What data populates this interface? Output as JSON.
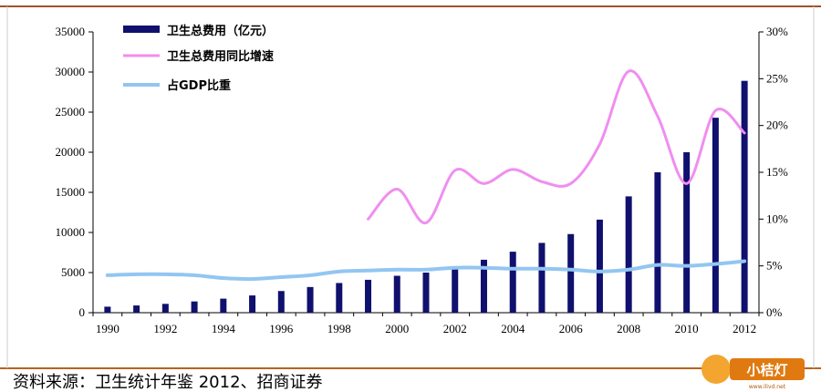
{
  "chart_data": {
    "type": "bar",
    "x_axis": {
      "categories": [
        1990,
        1991,
        1992,
        1993,
        1994,
        1995,
        1996,
        1997,
        1998,
        1999,
        2000,
        2001,
        2002,
        2003,
        2004,
        2005,
        2006,
        2007,
        2008,
        2009,
        2010,
        2011,
        2012
      ],
      "tick_labels": [
        "1990",
        "1992",
        "1994",
        "1996",
        "1998",
        "2000",
        "2002",
        "2004",
        "2006",
        "2008",
        "2010",
        "2012"
      ]
    },
    "y_left": {
      "min": 0,
      "max": 35000,
      "ticks": [
        "0",
        "5000",
        "10000",
        "15000",
        "20000",
        "25000",
        "30000",
        "35000"
      ]
    },
    "y_right": {
      "min": 0,
      "max": 30,
      "ticks": [
        "0%",
        "5%",
        "10%",
        "15%",
        "20%",
        "25%",
        "30%"
      ]
    },
    "series": [
      {
        "name": "卫生总费用（亿元）",
        "type": "bar",
        "axis": "left",
        "color": "#10106e",
        "values": [
          750,
          900,
          1100,
          1400,
          1750,
          2150,
          2700,
          3200,
          3700,
          4100,
          4600,
          5000,
          5700,
          6600,
          7600,
          8700,
          9800,
          11600,
          14500,
          17500,
          20000,
          24300,
          28900
        ]
      },
      {
        "name": "卫生总费用同比增速",
        "type": "line",
        "axis": "right",
        "color": "#f08ef0",
        "x": [
          1999,
          2000,
          2001,
          2002,
          2003,
          2004,
          2005,
          2006,
          2007,
          2008,
          2009,
          2010,
          2011,
          2012
        ],
        "values": [
          10.0,
          13.2,
          9.6,
          15.2,
          13.8,
          15.3,
          14.0,
          13.8,
          18.0,
          25.8,
          21.0,
          13.8,
          21.6,
          19.2
        ]
      },
      {
        "name": "占GDP比重",
        "type": "line",
        "axis": "right",
        "color": "#92c6f2",
        "x": [
          1990,
          1991,
          1992,
          1993,
          1994,
          1995,
          1996,
          1997,
          1998,
          1999,
          2000,
          2001,
          2002,
          2003,
          2004,
          2005,
          2006,
          2007,
          2008,
          2009,
          2010,
          2011,
          2012
        ],
        "values": [
          4.0,
          4.1,
          4.1,
          4.0,
          3.7,
          3.6,
          3.8,
          4.0,
          4.4,
          4.5,
          4.6,
          4.6,
          4.8,
          4.8,
          4.7,
          4.7,
          4.6,
          4.4,
          4.6,
          5.1,
          5.0,
          5.2,
          5.5
        ]
      }
    ],
    "legend_position": "top-left"
  },
  "footer": {
    "source": "资料来源：卫生统计年鉴 2012、招商证券",
    "watermark": "小桔灯",
    "watermark_url": "www.ilivd.net"
  },
  "colors": {
    "frame_top": "#a0522d",
    "frame_bottom": "#b5651d",
    "watermark_bg": "#e07a10"
  }
}
